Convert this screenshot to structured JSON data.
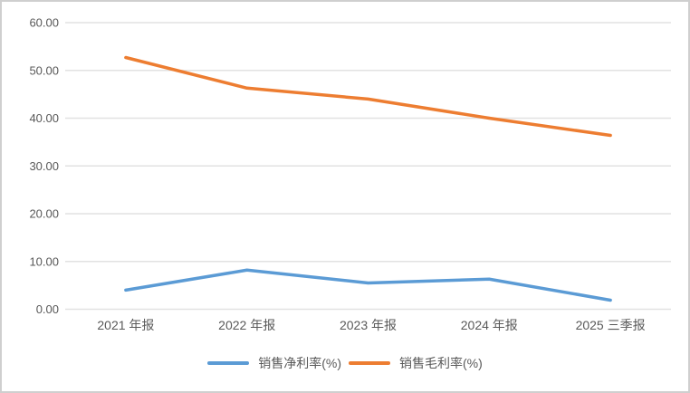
{
  "chart_data": {
    "type": "line",
    "title": "",
    "xlabel": "",
    "ylabel": "",
    "categories": [
      "2021 年报",
      "2022 年报",
      "2023 年报",
      "2024 年报",
      "2025 三季报"
    ],
    "series": [
      {
        "name": "销售净利率(%)",
        "color": "#5B9BD5",
        "values": [
          4.0,
          8.2,
          5.5,
          6.3,
          1.9
        ]
      },
      {
        "name": "销售毛利率(%)",
        "color": "#ED7D31",
        "values": [
          52.7,
          46.3,
          44.0,
          40.0,
          36.4
        ]
      }
    ],
    "ylim": [
      0,
      60
    ],
    "ytick_step": 10,
    "ytick_labels": [
      "0.00",
      "10.00",
      "20.00",
      "30.00",
      "40.00",
      "50.00",
      "60.00"
    ],
    "grid": true,
    "legend_position": "bottom",
    "markers": false
  },
  "colors": {
    "axis_text": "#595959",
    "gridline": "#e2e2e2",
    "background": "#ffffff",
    "border": "#cfcfcf"
  }
}
